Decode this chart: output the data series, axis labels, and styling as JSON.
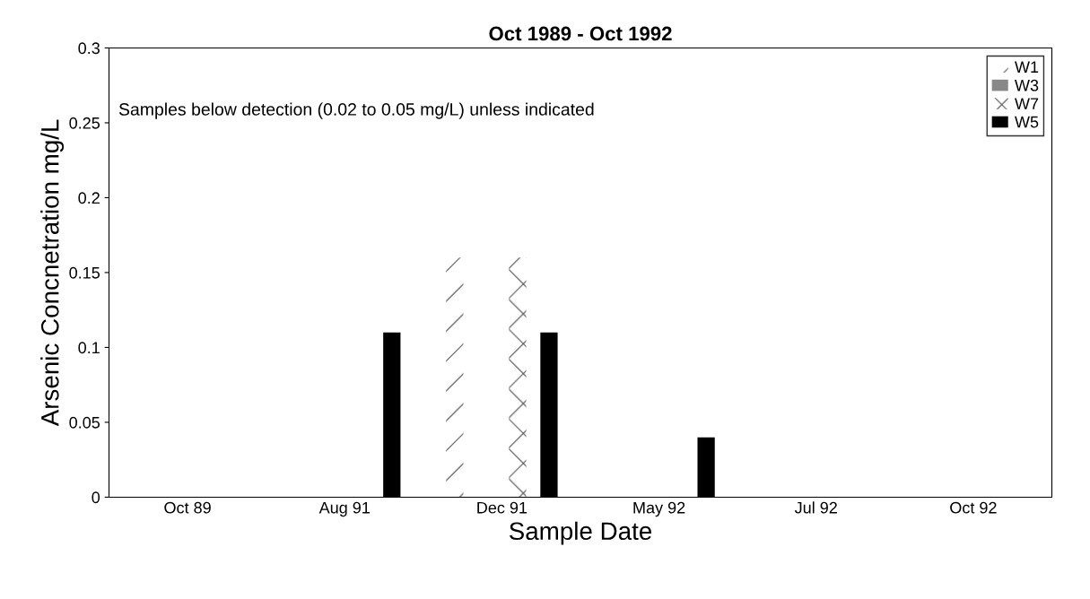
{
  "chart_data": {
    "type": "bar",
    "title": "Oct 1989 - Oct 1992",
    "xlabel": "Sample Date",
    "ylabel": "Arsenic Concnetration mg/L",
    "categories": [
      "Oct 89",
      "Aug 91",
      "Dec 91",
      "May 92",
      "Jul 92",
      "Oct 92"
    ],
    "series": [
      {
        "name": "W1",
        "color": "#ffffff",
        "values": [
          null,
          null,
          0.16,
          null,
          null,
          null
        ]
      },
      {
        "name": "W3",
        "color": "#888888",
        "values": [
          null,
          null,
          null,
          null,
          null,
          null
        ]
      },
      {
        "name": "W7",
        "color": "#ffffff",
        "values": [
          null,
          null,
          0.16,
          null,
          null,
          null
        ]
      },
      {
        "name": "W5",
        "color": "#000000",
        "values": [
          null,
          0.11,
          0.11,
          0.04,
          null,
          null
        ]
      }
    ],
    "ylim": [
      0,
      0.3
    ],
    "yticks": [
      0,
      0.05,
      0.1,
      0.15,
      0.2,
      0.25,
      0.3
    ],
    "annotations": [
      "Samples below detection (0.02 to 0.05 mg/L) unless indicated"
    ],
    "legend": "top right",
    "grid": false
  }
}
